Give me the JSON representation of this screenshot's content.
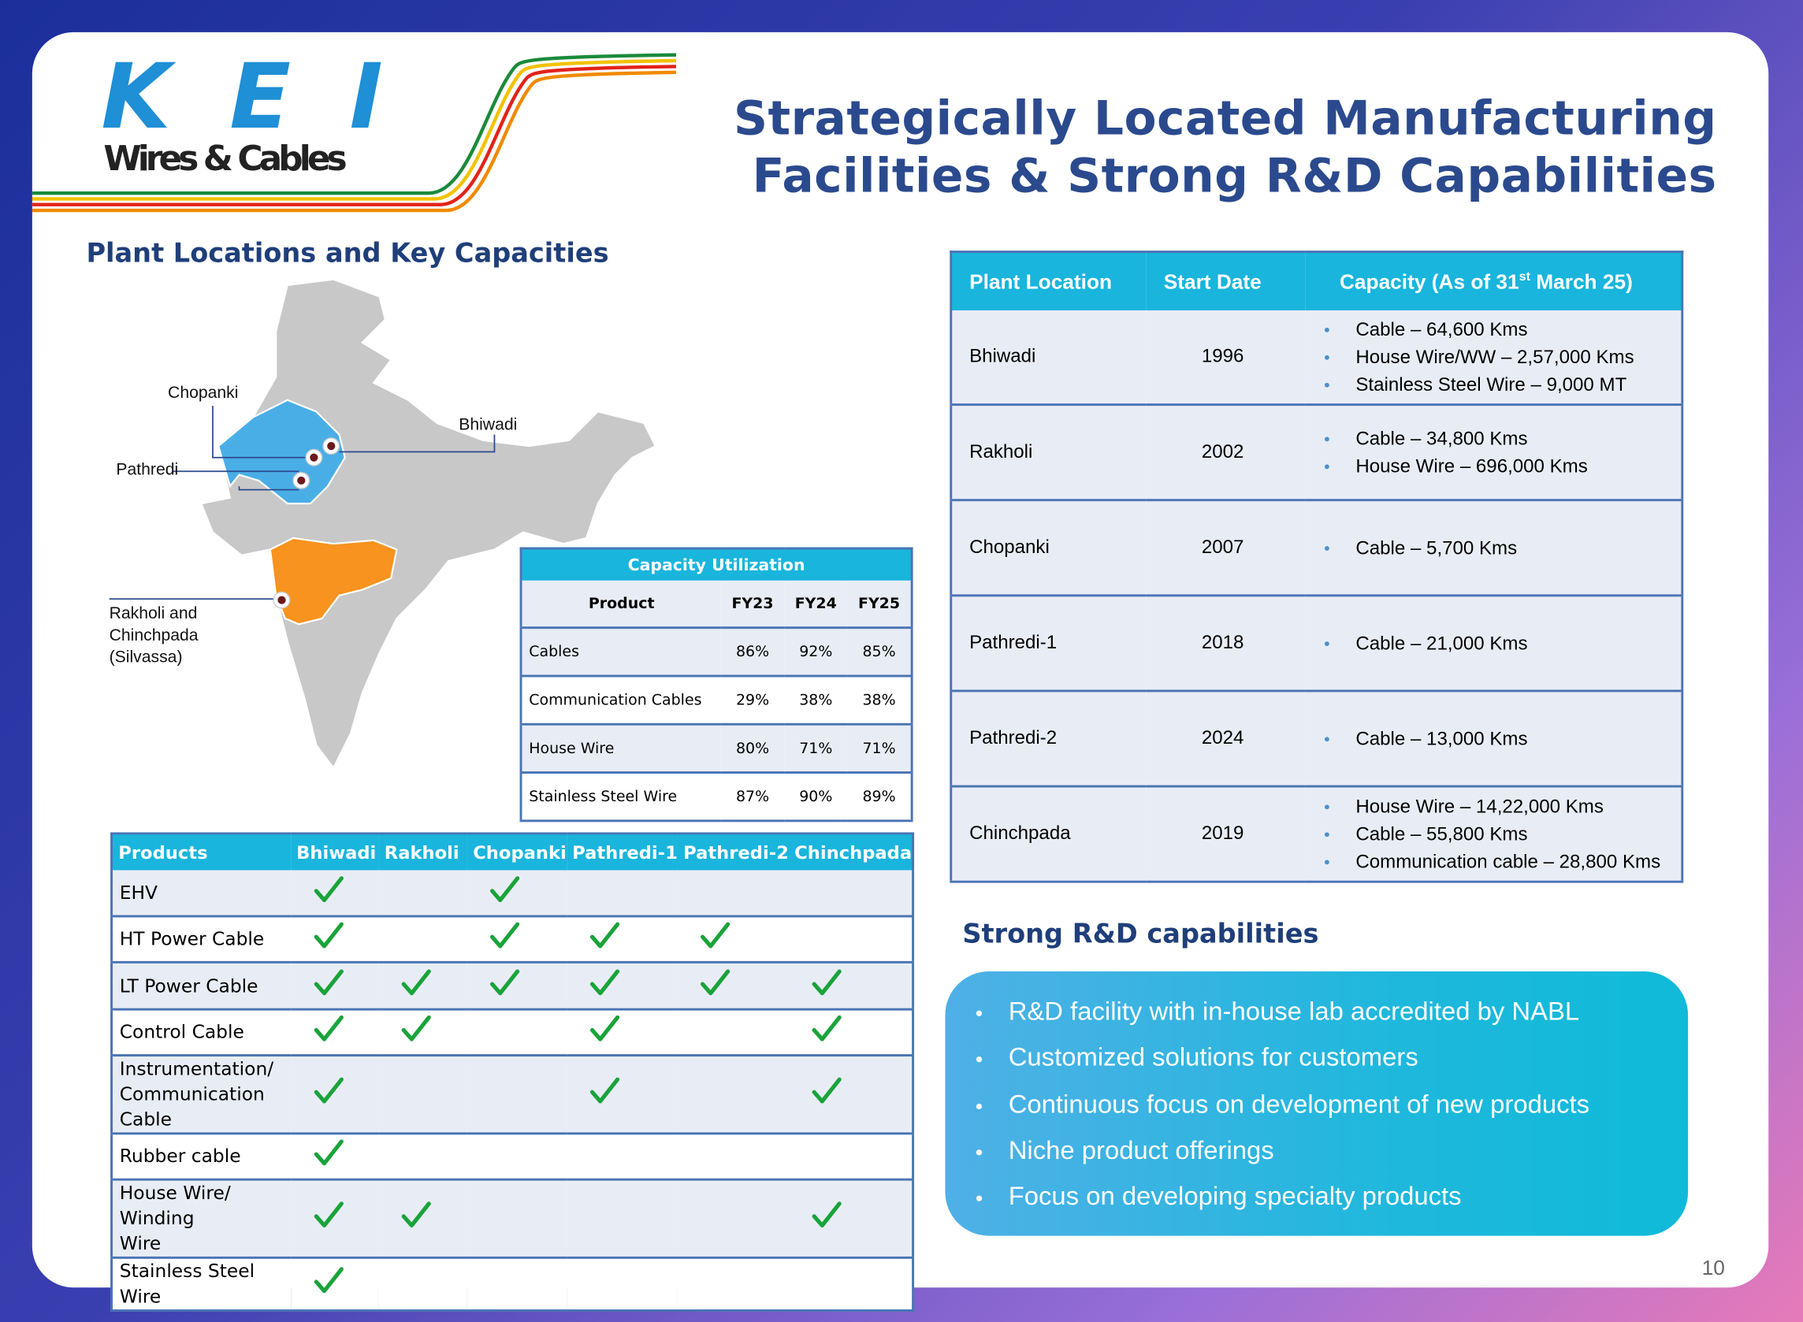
{
  "logo": {
    "brand": "KEI",
    "tagline": "Wires & Cables"
  },
  "title": [
    "Strategically Located Manufacturing",
    "Facilities & Strong R&D Capabilities"
  ],
  "map_section": {
    "heading": "Plant Locations and Key Capacities",
    "labels": [
      "Chopanki",
      "Bhiwadi",
      "Pathredi",
      "Rakholi and",
      "Chinchpada",
      "(Silvassa)"
    ]
  },
  "capacity_utilization": {
    "caption": "Capacity Utilization",
    "columns": [
      "Product",
      "FY23",
      "FY24",
      "FY25"
    ],
    "rows": [
      [
        "Cables",
        "86%",
        "92%",
        "85%"
      ],
      [
        "Communication Cables",
        "29%",
        "38%",
        "38%"
      ],
      [
        "House Wire",
        "80%",
        "71%",
        "71%"
      ],
      [
        "Stainless Steel Wire",
        "87%",
        "90%",
        "89%"
      ]
    ]
  },
  "product_matrix": {
    "columns": [
      "Products",
      "Bhiwadi",
      "Rakholi",
      "Chopanki",
      "Pathredi-1",
      "Pathredi-2",
      "Chinchpada"
    ],
    "rows": [
      {
        "product": [
          "EHV"
        ],
        "checks": [
          true,
          false,
          true,
          false,
          false,
          false
        ]
      },
      {
        "product": [
          "HT Power Cable"
        ],
        "checks": [
          true,
          false,
          true,
          true,
          true,
          false
        ]
      },
      {
        "product": [
          "LT Power Cable"
        ],
        "checks": [
          true,
          true,
          true,
          true,
          true,
          true
        ]
      },
      {
        "product": [
          "Control Cable"
        ],
        "checks": [
          true,
          true,
          false,
          true,
          false,
          true
        ]
      },
      {
        "product": [
          "Instrumentation/",
          "Communication Cable"
        ],
        "checks": [
          true,
          false,
          false,
          true,
          false,
          true
        ]
      },
      {
        "product": [
          "Rubber cable"
        ],
        "checks": [
          true,
          false,
          false,
          false,
          false,
          false
        ]
      },
      {
        "product": [
          "House Wire/ Winding",
          "Wire"
        ],
        "checks": [
          true,
          true,
          false,
          false,
          false,
          true
        ]
      },
      {
        "product": [
          "Stainless Steel Wire"
        ],
        "checks": [
          true,
          false,
          false,
          false,
          false,
          false
        ]
      }
    ]
  },
  "plant_table": {
    "columns": [
      "Plant Location",
      "Start Date",
      [
        "Capacity (As of 31",
        "st",
        " March 25)"
      ]
    ],
    "rows": [
      {
        "location": "Bhiwadi",
        "start": "1996",
        "capacity": [
          "Cable – 64,600 Kms",
          "House Wire/WW – 2,57,000 Kms",
          "Stainless Steel Wire – 9,000 MT"
        ]
      },
      {
        "location": "Rakholi",
        "start": "2002",
        "capacity": [
          "Cable – 34,800 Kms",
          "House Wire – 696,000 Kms"
        ]
      },
      {
        "location": "Chopanki",
        "start": "2007",
        "capacity": [
          "Cable – 5,700 Kms"
        ]
      },
      {
        "location": "Pathredi-1",
        "start": "2018",
        "capacity": [
          "Cable – 21,000 Kms"
        ]
      },
      {
        "location": "Pathredi-2",
        "start": "2024",
        "capacity": [
          "Cable – 13,000 Kms"
        ]
      },
      {
        "location": "Chinchpada",
        "start": "2019",
        "capacity": [
          "House Wire – 14,22,000 Kms",
          "Cable – 55,800 Kms",
          "Communication cable – 28,800 Kms"
        ]
      }
    ]
  },
  "rd": {
    "heading": "Strong R&D capabilities",
    "bullets": [
      "R&D facility with in-house lab accredited by NABL",
      "Customized solutions for customers",
      "Continuous focus on development of new products",
      "Niche product offerings",
      "Focus on developing specialty products"
    ]
  },
  "page_number": "10"
}
